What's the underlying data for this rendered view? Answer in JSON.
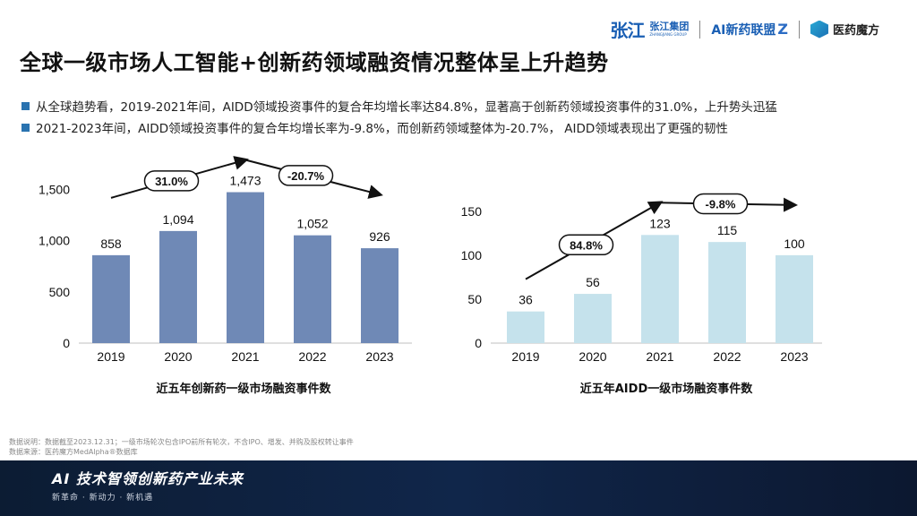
{
  "header": {
    "logo_zj_mark": "张江",
    "logo_zj_cn": "张江集团",
    "logo_zj_en": "ZHANGJIANG GROUP",
    "logo_ai_prefix": "AI",
    "logo_ai_text": "新药联盟",
    "logo_ai_mark": "Z",
    "logo_yy_text": "医药魔方"
  },
  "title": "全球一级市场人工智能+创新药领域融资情况整体呈上升趋势",
  "bullets": [
    "从全球趋势看，2019-2021年间，AIDD领域投资事件的复合年均增长率达84.8%，显著高于创新药领域投资事件的31.0%，上升势头迅猛",
    "2021-2023年间，AIDD领域投资事件的复合年均增长率为-9.8%，而创新药领域整体为-20.7%， AIDD领域表现出了更强的韧性"
  ],
  "chart_data": [
    {
      "type": "bar",
      "title": "近五年创新药一级市场融资事件数",
      "categories": [
        "2019",
        "2020",
        "2021",
        "2022",
        "2023"
      ],
      "values": [
        858,
        1094,
        1473,
        1052,
        926
      ],
      "value_labels": [
        "858",
        "1,094",
        "1,473",
        "1,052",
        "926"
      ],
      "ylim": [
        0,
        1600
      ],
      "yticks": [
        0,
        500,
        1000,
        1500
      ],
      "ytick_labels": [
        "0",
        "500",
        "1,000",
        "1,500"
      ],
      "bar_color": "#6f89b6",
      "annotations": [
        {
          "label": "31.0%",
          "from_year": "2019",
          "to_year": "2021"
        },
        {
          "label": "-20.7%",
          "from_year": "2021",
          "to_year": "2023"
        }
      ]
    },
    {
      "type": "bar",
      "title": "近五年AIDD一级市场融资事件数",
      "categories": [
        "2019",
        "2020",
        "2021",
        "2022",
        "2023"
      ],
      "values": [
        36,
        56,
        123,
        115,
        100
      ],
      "value_labels": [
        "36",
        "56",
        "123",
        "115",
        "100"
      ],
      "ylim": [
        0,
        160
      ],
      "yticks": [
        0,
        50,
        100,
        150
      ],
      "ytick_labels": [
        "0",
        "50",
        "100",
        "150"
      ],
      "bar_color": "#c5e2ec",
      "annotations": [
        {
          "label": "84.8%",
          "from_year": "2019",
          "to_year": "2021"
        },
        {
          "label": "-9.8%",
          "from_year": "2021",
          "to_year": "2023"
        }
      ]
    }
  ],
  "footnote": {
    "line1": "数据说明：数据截至2023.12.31；一级市场轮次包含IPO前所有轮次，不含IPO、增发、并购及股权转让事件",
    "line2": "数据来源：医药魔方MedAlpha®数据库"
  },
  "footer": {
    "title": "AI 技术智领创新药产业未来",
    "subtitle": "新革命 · 新动力 · 新机遇"
  }
}
